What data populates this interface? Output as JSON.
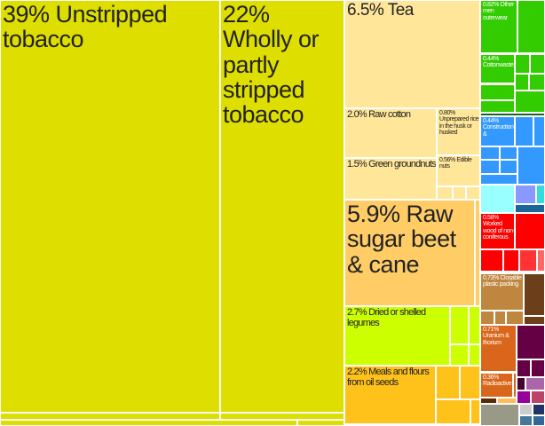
{
  "chart_data": {
    "type": "treemap",
    "unit": "% of exports",
    "items": [
      {
        "label": "39% Unstripped tobacco",
        "value": 39,
        "color": "#dede00"
      },
      {
        "label": "22% Wholly or partly stripped tobacco",
        "value": 22,
        "color": "#dede00"
      },
      {
        "label": "6.5% Tea",
        "value": 6.5,
        "color": "#ffe699"
      },
      {
        "label": "2.0% Raw cotton",
        "value": 2.0,
        "color": "#ffe699"
      },
      {
        "label": "1.5% Green groundnuts",
        "value": 1.5,
        "color": "#ffe699"
      },
      {
        "label": "0.80% Unprepared rice in the husk or husked",
        "value": 0.8,
        "color": "#ffe699"
      },
      {
        "label": "0.56% Edible nuts",
        "value": 0.56,
        "color": "#ffe699"
      },
      {
        "label": "5.9% Raw sugar beet & cane",
        "value": 5.9,
        "color": "#ffcc66"
      },
      {
        "label": "2.7% Dried or shelled legumes",
        "value": 2.7,
        "color": "#ccff00"
      },
      {
        "label": "2.2% Meals and flours from oil seeds",
        "value": 2.2,
        "color": "#ffc21a"
      },
      {
        "label": "0.82% Other men outerwear",
        "value": 0.82,
        "color": "#33cc00"
      },
      {
        "label": "0.44% Cottonwaste",
        "value": 0.44,
        "color": "#33cc00"
      },
      {
        "label": "0.44% Construction &",
        "value": 0.44,
        "color": "#3399ff"
      },
      {
        "label": "0.58% Worked wood of non-coniferous",
        "value": 0.58,
        "color": "#ff0000"
      },
      {
        "label": "0.73% Closable plastic packing",
        "value": 0.73,
        "color": "#bf8640"
      },
      {
        "label": "0.71% Uranium & thorium",
        "value": 0.71,
        "color": "#d9661a"
      },
      {
        "label": "0.36% Radioactive",
        "value": 0.36,
        "color": "#d9661a"
      }
    ]
  }
}
